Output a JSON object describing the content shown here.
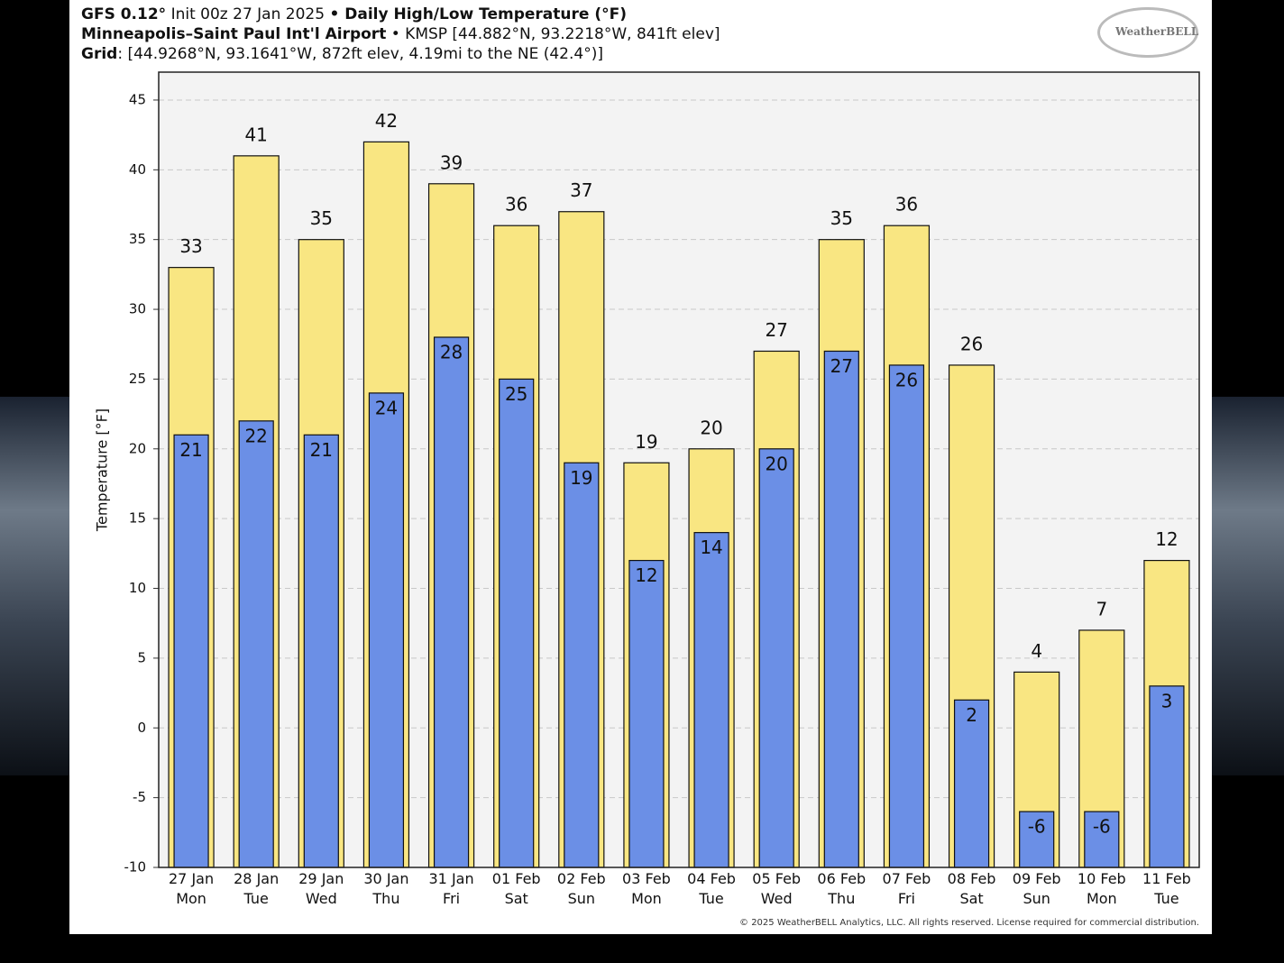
{
  "header": {
    "model": "GFS 0.12°",
    "init": "Init 00z 27 Jan 2025",
    "title": "• Daily High/Low Temperature (°F)",
    "station": "Minneapolis–Saint Paul Int'l Airport",
    "station_info": "• KMSP [44.882°N, 93.2218°W, 841ft elev]",
    "grid_label": "Grid",
    "grid_info": ": [44.9268°N, 93.1641°W, 872ft elev, 4.19mi to the NE (42.4°)]",
    "logo": "WeatherBELL",
    "copyright": "© 2025 WeatherBELL Analytics, LLC. All rights reserved. License required for commercial distribution."
  },
  "chart_data": {
    "type": "overlap-bar",
    "y_label": "Temperature [°F]",
    "categories": [
      "27 Jan\nMon",
      "28 Jan\nTue",
      "29 Jan\nWed",
      "30 Jan\nThu",
      "31 Jan\nFri",
      "01 Feb\nSat",
      "02 Feb\nSun",
      "03 Feb\nMon",
      "04 Feb\nTue",
      "05 Feb\nWed",
      "06 Feb\nThu",
      "07 Feb\nFri",
      "08 Feb\nSat",
      "09 Feb\nSun",
      "10 Feb\nMon",
      "11 Feb\nTue"
    ],
    "series": [
      {
        "color": "#f9e682",
        "values": [
          33,
          41,
          35,
          42,
          39,
          36,
          37,
          19,
          20,
          27,
          35,
          36,
          26,
          4,
          7,
          12
        ]
      },
      {
        "color": "#6b8fe6",
        "values": [
          21,
          22,
          21,
          24,
          28,
          25,
          19,
          12,
          14,
          20,
          27,
          26,
          2,
          -6,
          -6,
          3
        ]
      }
    ],
    "ylim": [
      -10,
      47
    ],
    "yticks": [
      -10,
      -5,
      0,
      5,
      10,
      15,
      20,
      25,
      30,
      35,
      40,
      45
    ],
    "grid": true
  }
}
